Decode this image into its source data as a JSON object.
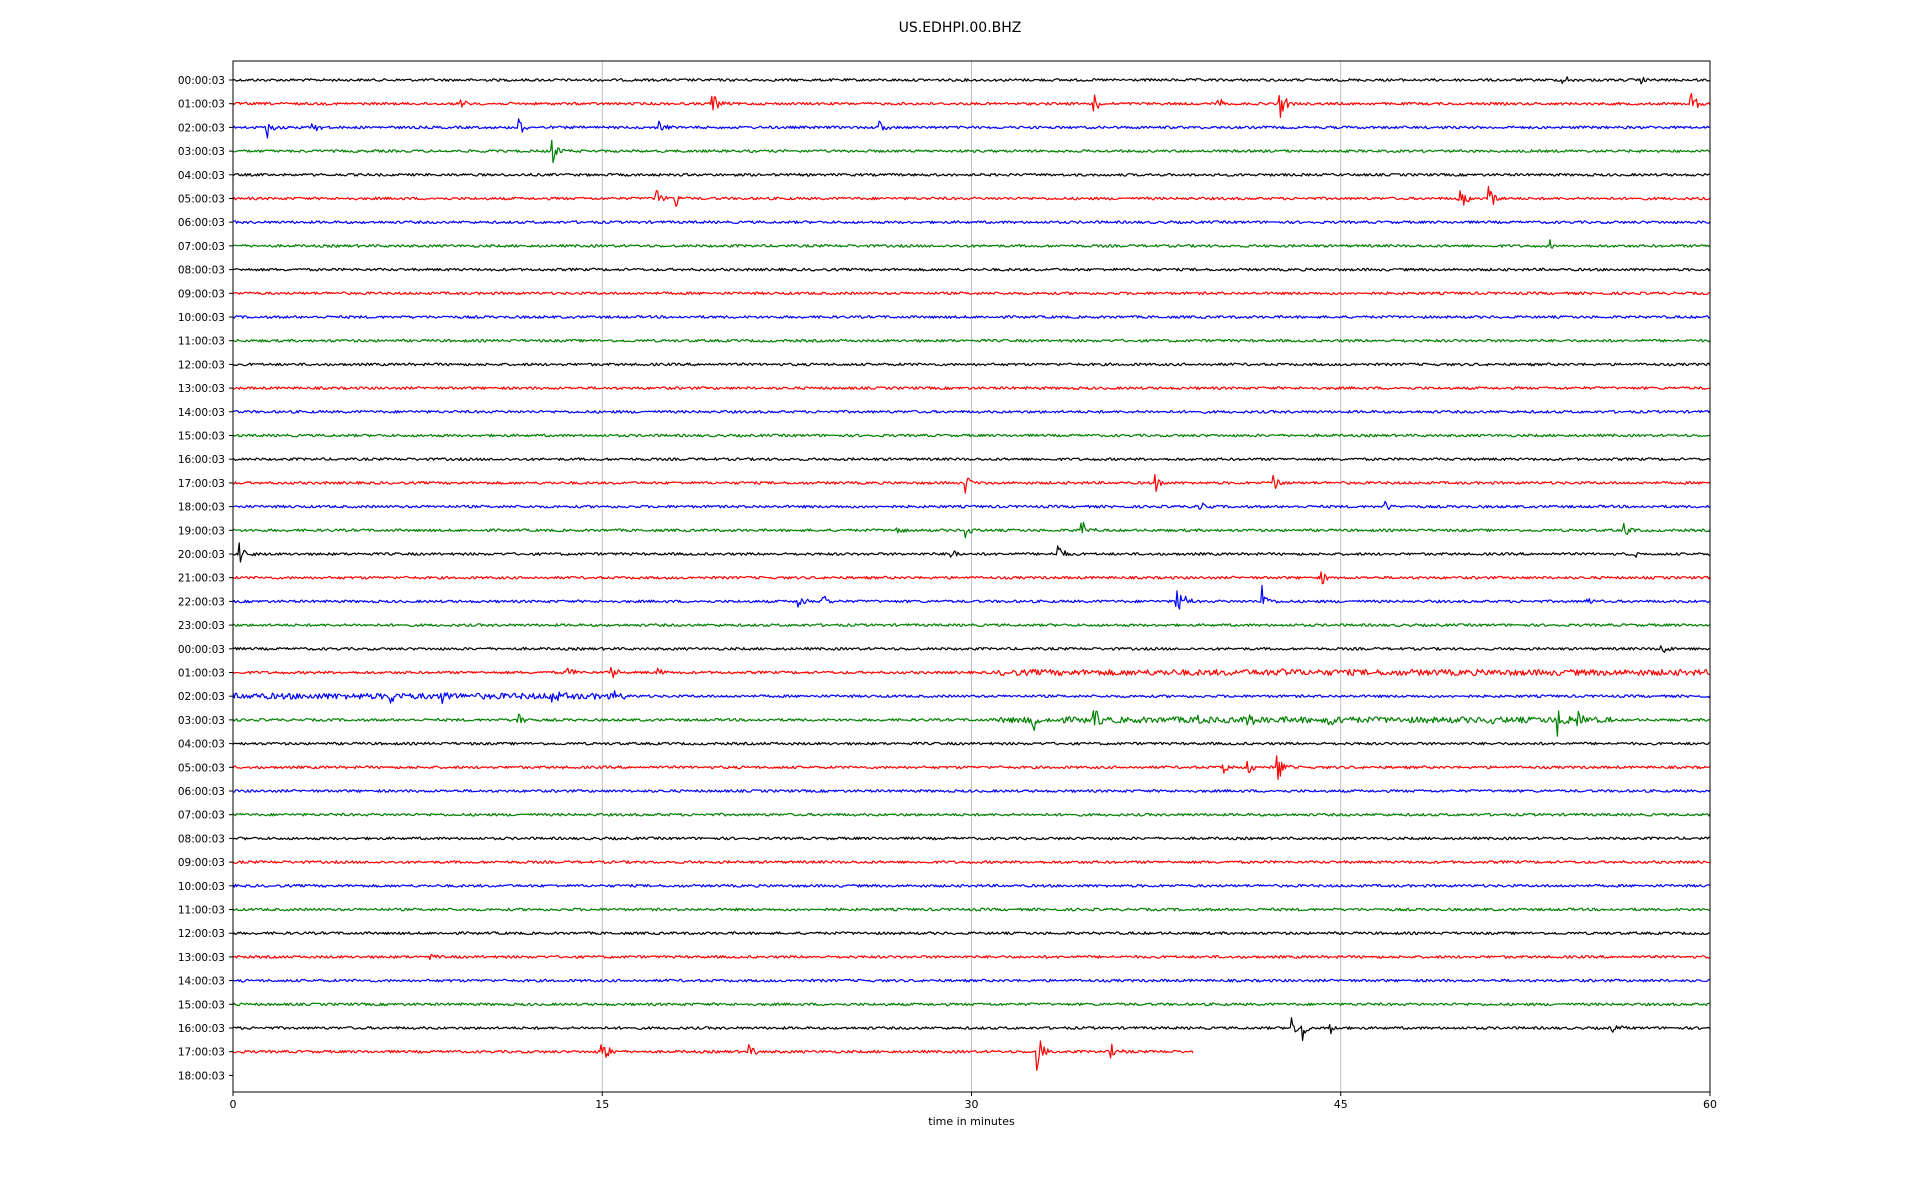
{
  "chart_data": {
    "type": "line",
    "title": "US.EDHPI.00.BHZ",
    "xlabel": "time in minutes",
    "ylabel": "",
    "xlim": [
      0,
      60
    ],
    "xticks": [
      0,
      15,
      30,
      45,
      60
    ],
    "grid": "vertical lines at 15, 30, 45",
    "color_cycle": [
      "#000000",
      "#ff0000",
      "#0000ff",
      "#008000"
    ],
    "row_labels": [
      "00:00:03",
      "01:00:03",
      "02:00:03",
      "03:00:03",
      "04:00:03",
      "05:00:03",
      "06:00:03",
      "07:00:03",
      "08:00:03",
      "09:00:03",
      "10:00:03",
      "11:00:03",
      "12:00:03",
      "13:00:03",
      "14:00:03",
      "15:00:03",
      "16:00:03",
      "17:00:03",
      "18:00:03",
      "19:00:03",
      "20:00:03",
      "21:00:03",
      "22:00:03",
      "23:00:03",
      "00:00:03",
      "01:00:03",
      "02:00:03",
      "03:00:03",
      "04:00:03",
      "05:00:03",
      "06:00:03",
      "07:00:03",
      "08:00:03",
      "09:00:03",
      "10:00:03",
      "11:00:03",
      "12:00:03",
      "13:00:03",
      "14:00:03",
      "15:00:03",
      "16:00:03",
      "17:00:03",
      "18:00:03"
    ],
    "trace_end_minutes": [
      60,
      60,
      60,
      60,
      60,
      60,
      60,
      60,
      60,
      60,
      60,
      60,
      60,
      60,
      60,
      60,
      60,
      60,
      60,
      60,
      60,
      60,
      60,
      60,
      60,
      60,
      60,
      60,
      60,
      60,
      60,
      60,
      60,
      60,
      60,
      60,
      60,
      60,
      60,
      60,
      60,
      39,
      0
    ],
    "events": [
      {
        "row": 0,
        "t": 54.0,
        "amp": 0.6
      },
      {
        "row": 0,
        "t": 57.2,
        "amp": 0.3
      },
      {
        "row": 1,
        "t": 9.2,
        "amp": 0.5
      },
      {
        "row": 1,
        "t": 19.5,
        "amp": 0.9
      },
      {
        "row": 1,
        "t": 35.0,
        "amp": 0.7
      },
      {
        "row": 1,
        "t": 40.0,
        "amp": 0.5
      },
      {
        "row": 1,
        "t": 42.5,
        "amp": 1.4
      },
      {
        "row": 1,
        "t": 59.2,
        "amp": 1.2
      },
      {
        "row": 2,
        "t": 1.4,
        "amp": 0.8
      },
      {
        "row": 2,
        "t": 3.2,
        "amp": 0.5
      },
      {
        "row": 2,
        "t": 11.6,
        "amp": 0.7
      },
      {
        "row": 2,
        "t": 17.3,
        "amp": 0.6
      },
      {
        "row": 2,
        "t": 26.3,
        "amp": 0.5
      },
      {
        "row": 3,
        "t": 10.3,
        "amp": 0.4
      },
      {
        "row": 3,
        "t": 13.0,
        "amp": 0.9
      },
      {
        "row": 5,
        "t": 17.2,
        "amp": 0.8
      },
      {
        "row": 5,
        "t": 18.0,
        "amp": 0.6
      },
      {
        "row": 5,
        "t": 49.8,
        "amp": 1.3
      },
      {
        "row": 5,
        "t": 51.0,
        "amp": 1.6
      },
      {
        "row": 7,
        "t": 53.5,
        "amp": 0.4
      },
      {
        "row": 17,
        "t": 29.8,
        "amp": 0.7
      },
      {
        "row": 17,
        "t": 37.5,
        "amp": 0.6
      },
      {
        "row": 17,
        "t": 42.2,
        "amp": 0.8
      },
      {
        "row": 18,
        "t": 39.2,
        "amp": 0.5
      },
      {
        "row": 18,
        "t": 46.8,
        "amp": 0.5
      },
      {
        "row": 19,
        "t": 27.0,
        "amp": 0.4
      },
      {
        "row": 19,
        "t": 29.8,
        "amp": 0.5
      },
      {
        "row": 19,
        "t": 34.5,
        "amp": 0.8
      },
      {
        "row": 19,
        "t": 56.5,
        "amp": 0.6
      },
      {
        "row": 20,
        "t": 0.3,
        "amp": 1.2
      },
      {
        "row": 20,
        "t": 29.2,
        "amp": 0.5
      },
      {
        "row": 20,
        "t": 33.5,
        "amp": 0.8
      },
      {
        "row": 20,
        "t": 56.8,
        "amp": 0.4
      },
      {
        "row": 21,
        "t": 44.2,
        "amp": 0.7
      },
      {
        "row": 21,
        "t": 57.0,
        "amp": 0.3
      },
      {
        "row": 22,
        "t": 23.0,
        "amp": 0.5
      },
      {
        "row": 22,
        "t": 24.0,
        "amp": 0.5
      },
      {
        "row": 22,
        "t": 38.3,
        "amp": 2.2
      },
      {
        "row": 22,
        "t": 41.8,
        "amp": 1.2
      },
      {
        "row": 22,
        "t": 55.0,
        "amp": 0.3
      },
      {
        "row": 24,
        "t": 58.0,
        "amp": 0.6
      },
      {
        "row": 25,
        "t": 13.6,
        "amp": 0.5
      },
      {
        "row": 25,
        "t": 15.4,
        "amp": 0.6
      },
      {
        "row": 25,
        "t": 17.3,
        "amp": 0.4
      },
      {
        "row": 25,
        "t": 42.5,
        "amp": 0.4
      },
      {
        "row": 26,
        "t": 6.4,
        "amp": 0.7
      },
      {
        "row": 26,
        "t": 8.5,
        "amp": 0.5
      },
      {
        "row": 26,
        "t": 13.0,
        "amp": 0.5
      },
      {
        "row": 26,
        "t": 15.5,
        "amp": 0.4
      },
      {
        "row": 27,
        "t": 11.6,
        "amp": 0.6
      },
      {
        "row": 27,
        "t": 32.5,
        "amp": 1.0
      },
      {
        "row": 27,
        "t": 35.0,
        "amp": 0.7
      },
      {
        "row": 27,
        "t": 39.2,
        "amp": 0.5
      },
      {
        "row": 27,
        "t": 41.2,
        "amp": 0.6
      },
      {
        "row": 27,
        "t": 44.5,
        "amp": 1.0
      },
      {
        "row": 27,
        "t": 51.0,
        "amp": 0.5
      },
      {
        "row": 27,
        "t": 53.8,
        "amp": 1.4
      },
      {
        "row": 27,
        "t": 54.6,
        "amp": 1.0
      },
      {
        "row": 29,
        "t": 40.2,
        "amp": 0.5
      },
      {
        "row": 29,
        "t": 41.2,
        "amp": 0.7
      },
      {
        "row": 29,
        "t": 42.4,
        "amp": 1.3
      },
      {
        "row": 37,
        "t": 7.9,
        "amp": 0.3
      },
      {
        "row": 40,
        "t": 43.0,
        "amp": 0.9
      },
      {
        "row": 40,
        "t": 43.4,
        "amp": 1.2
      },
      {
        "row": 40,
        "t": 44.5,
        "amp": 0.7
      },
      {
        "row": 40,
        "t": 56.0,
        "amp": 0.4
      },
      {
        "row": 41,
        "t": 15.0,
        "amp": 1.0
      },
      {
        "row": 41,
        "t": 21.0,
        "amp": 0.6
      },
      {
        "row": 41,
        "t": 32.7,
        "amp": 1.4
      },
      {
        "row": 41,
        "t": 35.7,
        "amp": 0.6
      }
    ],
    "noisy_segments": [
      {
        "row": 25,
        "from": 31,
        "to": 60
      },
      {
        "row": 26,
        "from": 0,
        "to": 16
      },
      {
        "row": 27,
        "from": 31,
        "to": 56
      }
    ]
  }
}
